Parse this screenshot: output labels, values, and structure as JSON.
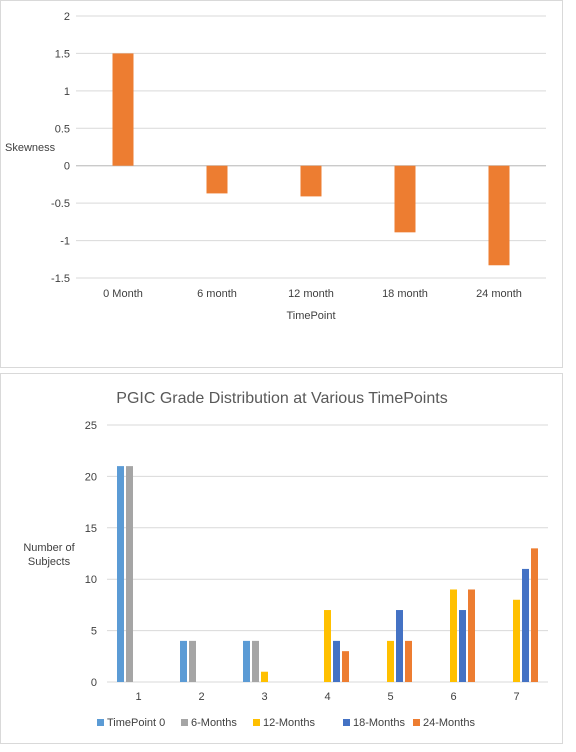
{
  "chart_data": [
    {
      "type": "bar",
      "title": "",
      "xlabel": "TimePoint",
      "ylabel": "Skewness",
      "categories": [
        "0 Month",
        "6 month",
        "12 month",
        "18 month",
        "24 month"
      ],
      "values": [
        1.5,
        -0.37,
        -0.41,
        -0.89,
        -1.33
      ],
      "ylim": [
        -1.5,
        2
      ],
      "yticks": [
        "2",
        "1.5",
        "1",
        "0.5",
        "0",
        "-0.5",
        "-1",
        "-1.5"
      ],
      "grid": true,
      "legend": "none",
      "color": "#ed7d31"
    },
    {
      "type": "bar",
      "title": "PGIC Grade Distribution at Various TimePoints",
      "xlabel": "",
      "ylabel": "Number of Subjects",
      "ylabel_lines": [
        "Number of",
        "Subjects"
      ],
      "categories": [
        "1",
        "2",
        "3",
        "4",
        "5",
        "6",
        "7"
      ],
      "ylim": [
        0,
        25
      ],
      "yticks": [
        "25",
        "20",
        "15",
        "10",
        "5",
        "0"
      ],
      "grid": true,
      "legend": "bottom",
      "series": [
        {
          "name": "TimePoint 0",
          "color": "#5b9bd5",
          "values": [
            21,
            4,
            4,
            0,
            0,
            0,
            0
          ]
        },
        {
          "name": "6-Months",
          "color": "#a5a5a5",
          "values": [
            21,
            4,
            4,
            0,
            0,
            0,
            0
          ]
        },
        {
          "name": "12-Months",
          "color": "#ffc000",
          "values": [
            0,
            0,
            1,
            7,
            4,
            9,
            8
          ]
        },
        {
          "name": "18-Months",
          "color": "#4472c4",
          "values": [
            0,
            0,
            0,
            4,
            7,
            7,
            11
          ]
        },
        {
          "name": "24-Months",
          "color": "#ed7d31",
          "values": [
            0,
            0,
            0,
            3,
            4,
            9,
            13
          ]
        }
      ]
    }
  ]
}
